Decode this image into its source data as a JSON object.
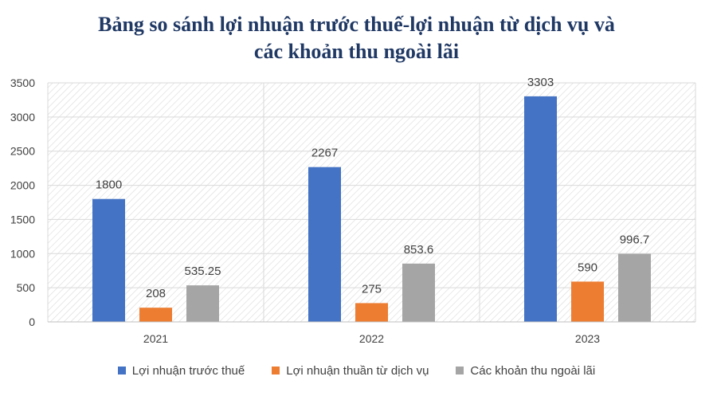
{
  "chart_data": {
    "type": "bar",
    "title_line1": "Bảng so sánh lợi nhuận trước thuế-lợi nhuận từ dịch vụ và",
    "title_line2": "các khoản thu ngoài lãi",
    "xlabel": "",
    "ylabel": "",
    "categories": [
      "2021",
      "2022",
      "2023"
    ],
    "ylim": [
      0,
      3500
    ],
    "yticks": [
      0,
      500,
      1000,
      1500,
      2000,
      2500,
      3000,
      3500
    ],
    "grid": true,
    "legend_position": "bottom",
    "series": [
      {
        "name": "Lợi nhuận trước thuế",
        "color": "#4472c4",
        "values": [
          1800,
          2267,
          3303
        ],
        "labels": [
          "1800",
          "2267",
          "3303"
        ]
      },
      {
        "name": "Lợi nhuận thuần từ dịch vụ",
        "color": "#ed7d31",
        "values": [
          208,
          275,
          590
        ],
        "labels": [
          "208",
          "275",
          "590"
        ]
      },
      {
        "name": "Các khoản thu ngoài lãi",
        "color": "#a5a5a5",
        "values": [
          535.25,
          853.6,
          996.7
        ],
        "labels": [
          "535.25",
          "853.6",
          "996.7"
        ]
      }
    ]
  }
}
